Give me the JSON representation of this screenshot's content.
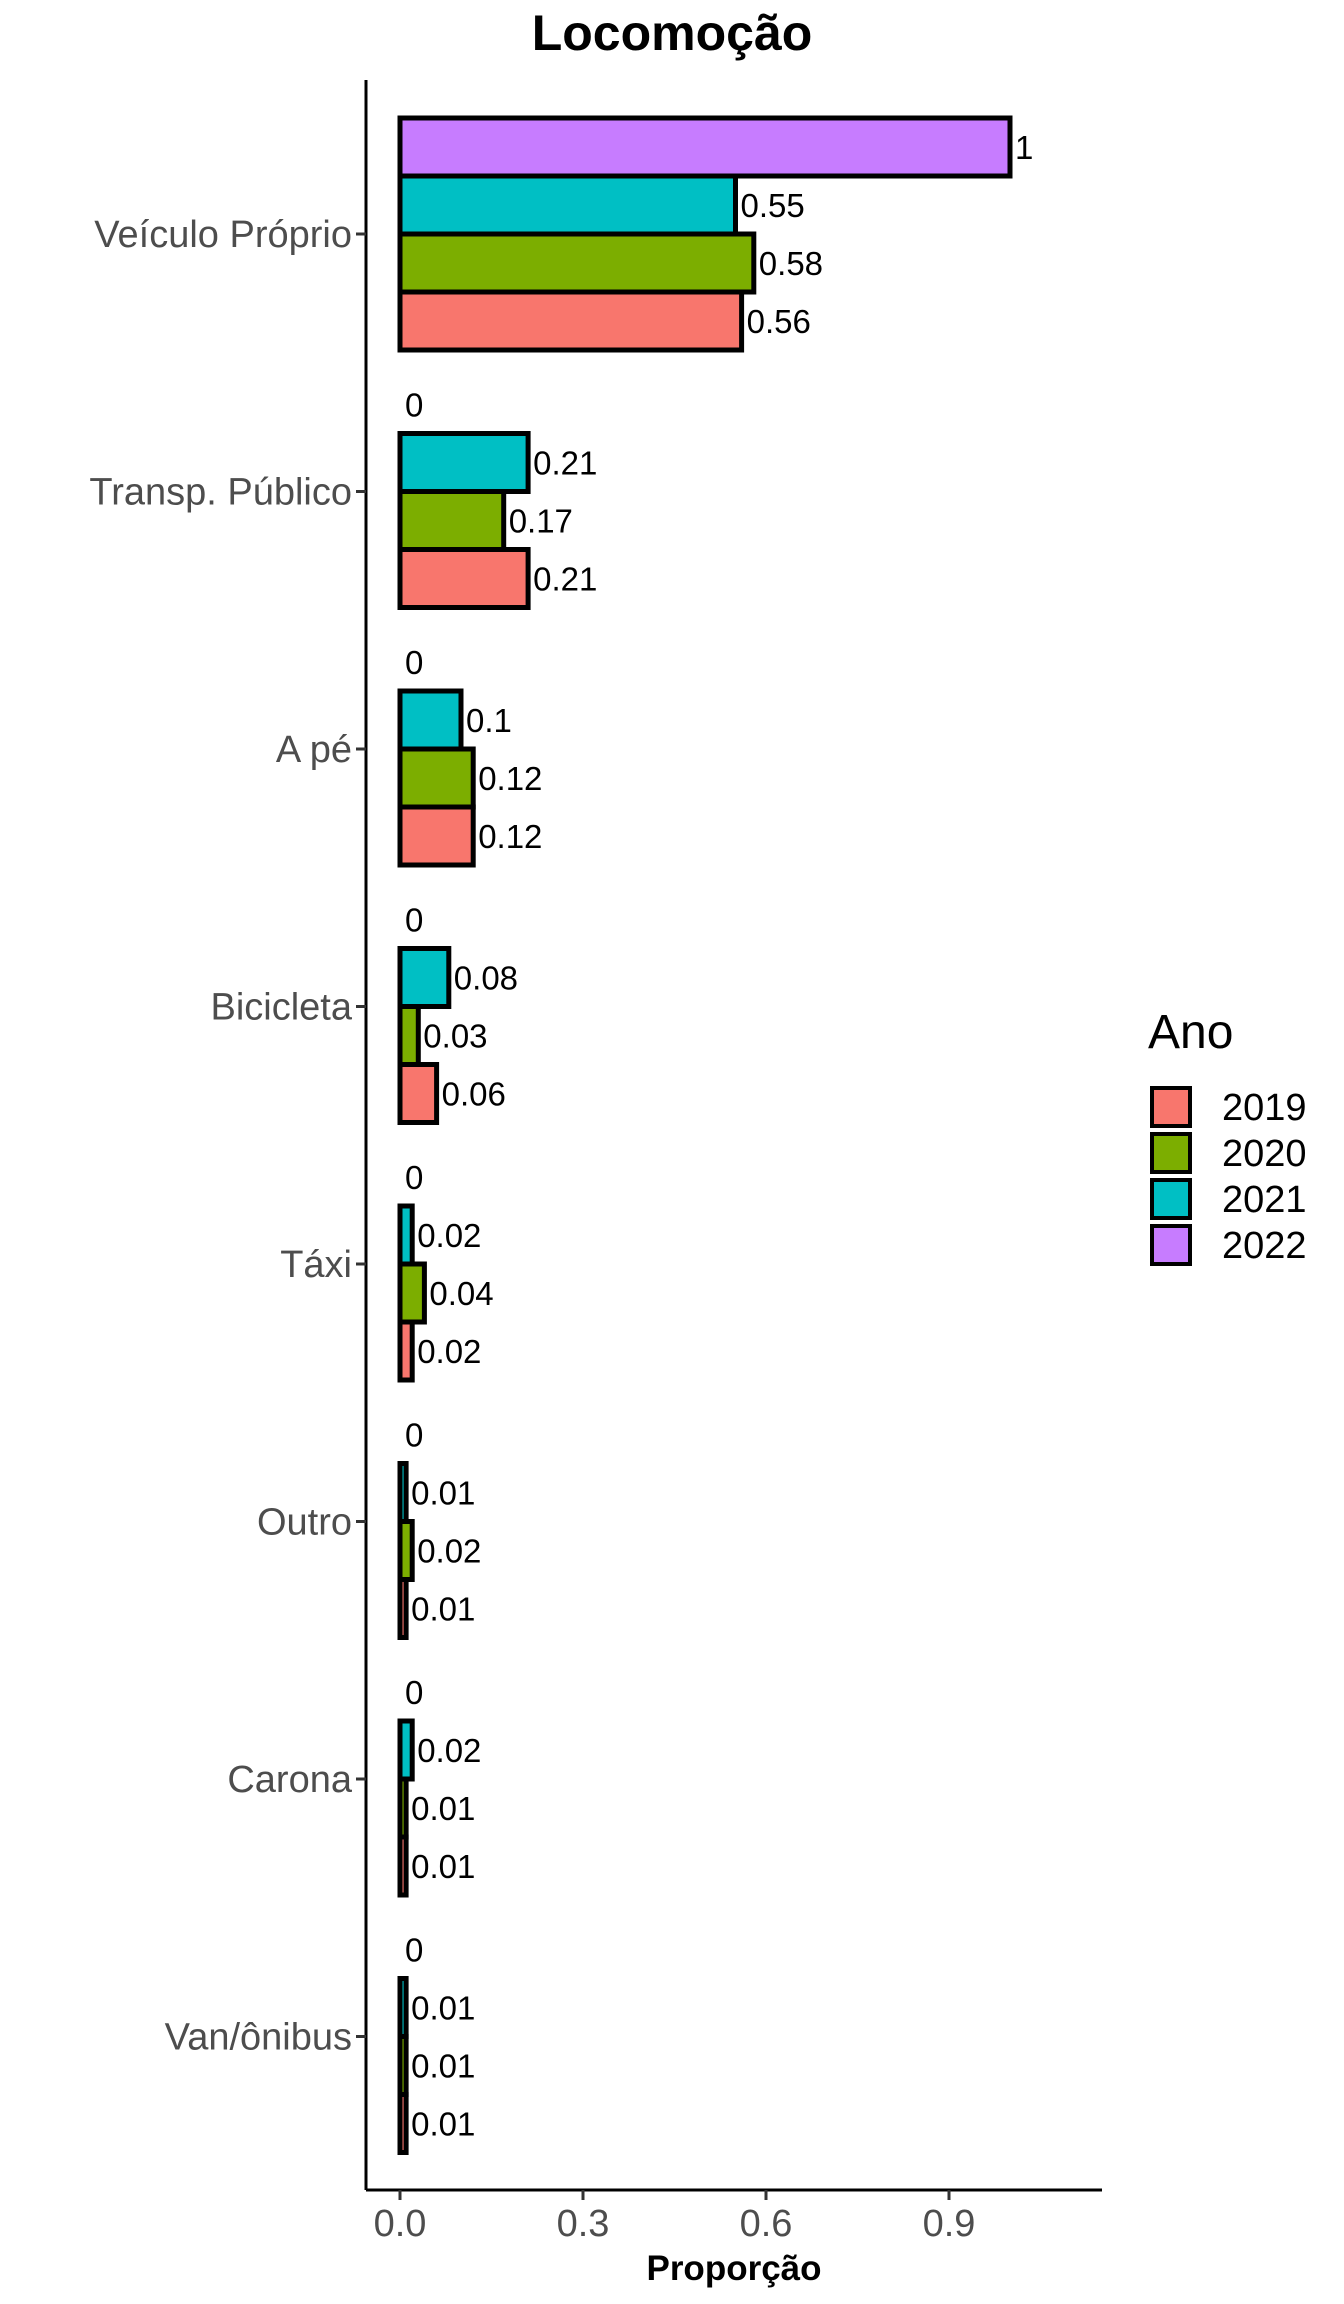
{
  "chart_data": {
    "type": "bar",
    "orientation": "horizontal",
    "title": "Locomoção",
    "xlabel": "Proporção",
    "ylabel": "",
    "xlim": [
      -0.0625,
      1.13
    ],
    "x_ticks": [
      0.0,
      0.3,
      0.6,
      0.9
    ],
    "x_tick_labels": [
      "0.0",
      "0.3",
      "0.6",
      "0.9"
    ],
    "grid": false,
    "legend_position": "right",
    "legend_title": "Ano",
    "categories": [
      "Veículo Próprio",
      "Transp. Público",
      "A pé",
      "Bicicleta",
      "Táxi",
      "Outro",
      "Carona",
      "Van/ônibus"
    ],
    "series": [
      {
        "name": "2019",
        "color": "#F8766D",
        "values": [
          0.56,
          0.21,
          0.12,
          0.06,
          0.02,
          0.01,
          0.01,
          0.01
        ],
        "labels": [
          "0.56",
          "0.21",
          "0.12",
          "0.06",
          "0.02",
          "0.01",
          "0.01",
          "0.01"
        ]
      },
      {
        "name": "2020",
        "color": "#7CAE00",
        "values": [
          0.58,
          0.17,
          0.12,
          0.03,
          0.04,
          0.02,
          0.01,
          0.01
        ],
        "labels": [
          "0.58",
          "0.17",
          "0.12",
          "0.03",
          "0.04",
          "0.02",
          "0.01",
          "0.01"
        ]
      },
      {
        "name": "2021",
        "color": "#00BFC4",
        "values": [
          0.55,
          0.21,
          0.1,
          0.08,
          0.02,
          0.01,
          0.02,
          0.01
        ],
        "labels": [
          "0.55",
          "0.21",
          "0.1",
          "0.08",
          "0.02",
          "0.01",
          "0.02",
          "0.01"
        ]
      },
      {
        "name": "2022",
        "color": "#C77CFF",
        "values": [
          1.0,
          0,
          0,
          0,
          0,
          0,
          0,
          0
        ],
        "labels": [
          "1",
          "0",
          "0",
          "0",
          "0",
          "0",
          "0",
          "0"
        ]
      }
    ]
  }
}
